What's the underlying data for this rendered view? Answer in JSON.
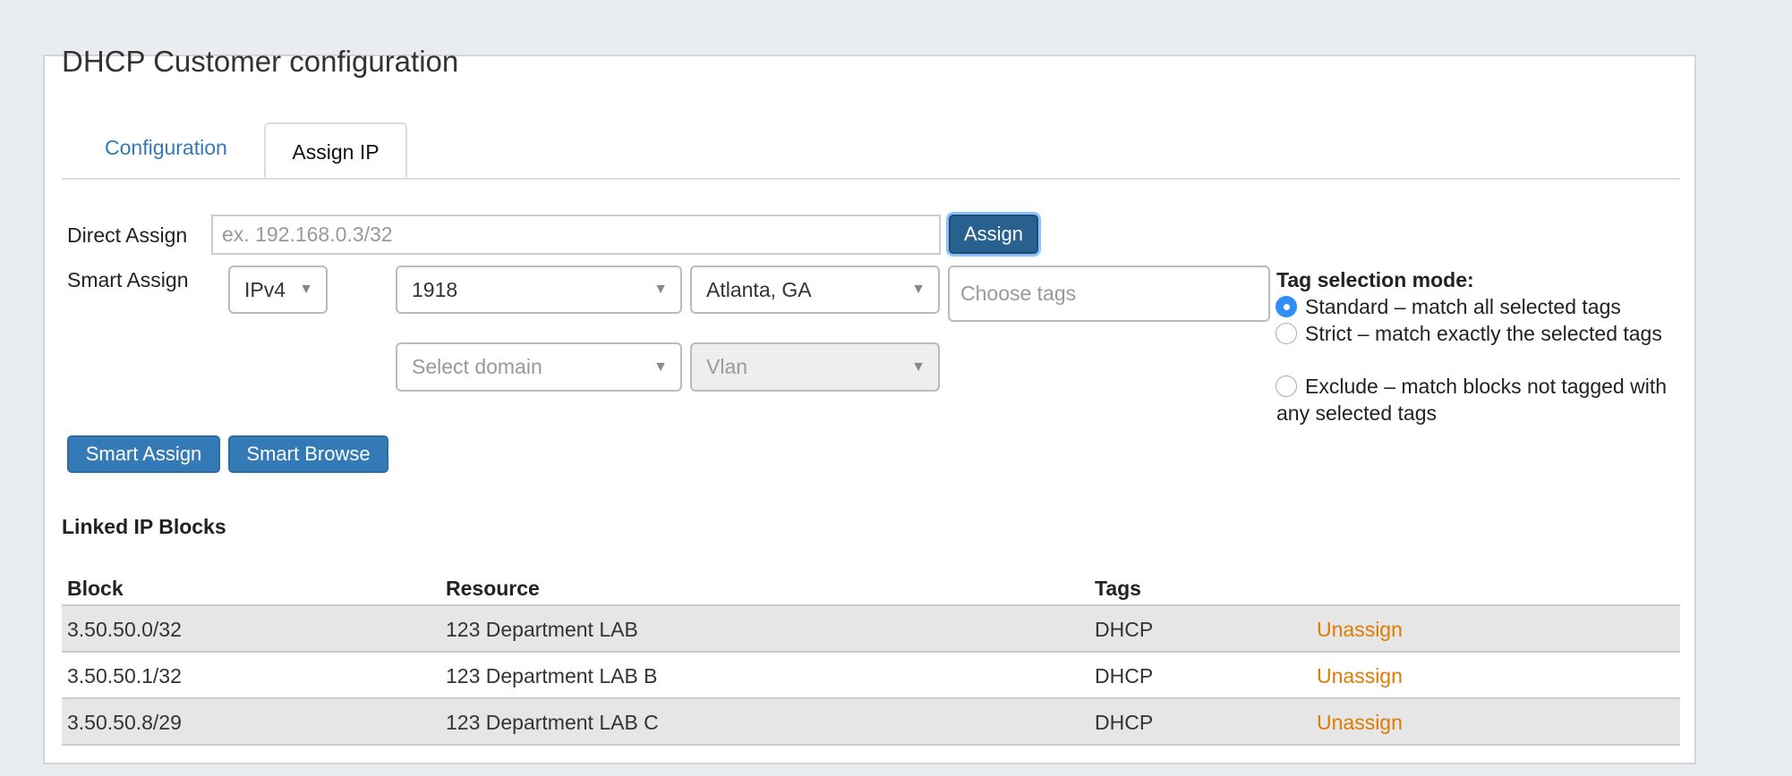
{
  "page": {
    "title": "DHCP Customer configuration"
  },
  "tabs": [
    {
      "label": "Configuration",
      "active": false
    },
    {
      "label": "Assign IP",
      "active": true
    }
  ],
  "direct_assign": {
    "label": "Direct Assign",
    "placeholder": "ex. 192.168.0.3/32",
    "button": "Assign"
  },
  "smart_assign": {
    "label": "Smart Assign",
    "ip_version": "IPv4",
    "pool": "1918",
    "location": "Atlanta, GA",
    "tags_placeholder": "Choose tags",
    "domain_placeholder": "Select domain",
    "vlan_placeholder": "Vlan"
  },
  "tag_mode": {
    "title": "Tag selection mode:",
    "options": [
      {
        "label": "Standard – match all selected tags",
        "selected": true
      },
      {
        "label": "Strict – match exactly the selected tags",
        "selected": false
      },
      {
        "label": "Exclude – match blocks not tagged with any selected tags",
        "selected": false
      }
    ]
  },
  "buttons": {
    "smart_assign": "Smart Assign",
    "smart_browse": "Smart Browse"
  },
  "linked": {
    "title": "Linked IP Blocks",
    "headers": [
      "Block",
      "Resource",
      "Tags"
    ],
    "rows": [
      {
        "block": "3.50.50.0/32",
        "resource": "123 Department LAB",
        "tags": "DHCP",
        "action": "Unassign"
      },
      {
        "block": "3.50.50.1/32",
        "resource": "123 Department LAB B",
        "tags": "DHCP",
        "action": "Unassign"
      },
      {
        "block": "3.50.50.8/29",
        "resource": "123 Department LAB C",
        "tags": "DHCP",
        "action": "Unassign"
      }
    ]
  },
  "colors": {
    "primary": "#337ab7",
    "link": "#337ab7",
    "unassign": "#e07b00",
    "radio": "#2f8ff7"
  }
}
